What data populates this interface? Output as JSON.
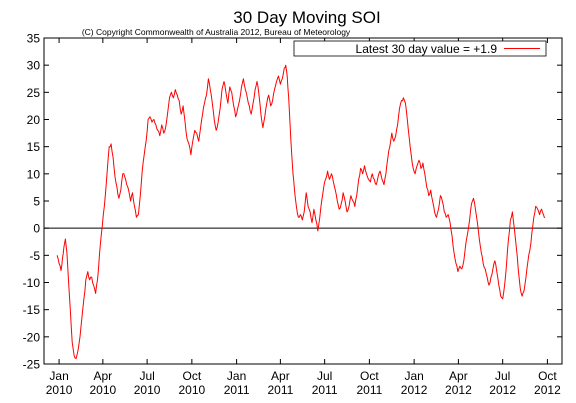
{
  "chart_data": {
    "type": "line",
    "title": "30 Day Moving SOI",
    "subtitle": "(C) Copyright Commonwealth of Australia 2012, Bureau of Meteorology",
    "xlabel": "",
    "ylabel": "",
    "ylim": [
      -25,
      35
    ],
    "yticks": [
      -25,
      -20,
      -15,
      -10,
      -5,
      0,
      5,
      10,
      15,
      20,
      25,
      30,
      35
    ],
    "xlim": [
      "2009-12-01",
      "2012-10-31"
    ],
    "xticks": [
      {
        "date": "2010-01-01",
        "line1": "Jan",
        "line2": "2010"
      },
      {
        "date": "2010-04-01",
        "line1": "Apr",
        "line2": "2010"
      },
      {
        "date": "2010-07-01",
        "line1": "Jul",
        "line2": "2010"
      },
      {
        "date": "2010-10-01",
        "line1": "Oct",
        "line2": "2010"
      },
      {
        "date": "2011-01-01",
        "line1": "Jan",
        "line2": "2011"
      },
      {
        "date": "2011-04-01",
        "line1": "Apr",
        "line2": "2011"
      },
      {
        "date": "2011-07-01",
        "line1": "Jul",
        "line2": "2011"
      },
      {
        "date": "2011-10-01",
        "line1": "Oct",
        "line2": "2011"
      },
      {
        "date": "2012-01-01",
        "line1": "Jan",
        "line2": "2012"
      },
      {
        "date": "2012-04-01",
        "line1": "Apr",
        "line2": "2012"
      },
      {
        "date": "2012-07-01",
        "line1": "Jul",
        "line2": "2012"
      },
      {
        "date": "2012-10-01",
        "line1": "Oct",
        "line2": "2012"
      }
    ],
    "grid": false,
    "legend_position": "top-right",
    "series": [
      {
        "name": "Latest 30 day value = +1.9",
        "color": "#ff0000",
        "points": [
          [
            "2009-12-28",
            -5.0
          ],
          [
            "2010-01-01",
            -6.5
          ],
          [
            "2010-01-05",
            -7.8
          ],
          [
            "2010-01-08",
            -5.5
          ],
          [
            "2010-01-11",
            -3.5
          ],
          [
            "2010-01-14",
            -2.0
          ],
          [
            "2010-01-17",
            -4.5
          ],
          [
            "2010-01-20",
            -9.0
          ],
          [
            "2010-01-24",
            -15.0
          ],
          [
            "2010-01-28",
            -21.0
          ],
          [
            "2010-02-01",
            -23.5
          ],
          [
            "2010-02-05",
            -24.0
          ],
          [
            "2010-02-09",
            -22.5
          ],
          [
            "2010-02-13",
            -20.0
          ],
          [
            "2010-02-17",
            -16.5
          ],
          [
            "2010-02-21",
            -13.0
          ],
          [
            "2010-02-25",
            -9.5
          ],
          [
            "2010-03-01",
            -8.0
          ],
          [
            "2010-03-05",
            -9.5
          ],
          [
            "2010-03-09",
            -9.0
          ],
          [
            "2010-03-13",
            -10.5
          ],
          [
            "2010-03-17",
            -12.0
          ],
          [
            "2010-03-21",
            -9.5
          ],
          [
            "2010-03-25",
            -5.0
          ],
          [
            "2010-03-29",
            -1.0
          ],
          [
            "2010-04-02",
            2.5
          ],
          [
            "2010-04-06",
            6.0
          ],
          [
            "2010-04-10",
            10.5
          ],
          [
            "2010-04-14",
            15.0
          ],
          [
            "2010-04-18",
            15.5
          ],
          [
            "2010-04-22",
            13.0
          ],
          [
            "2010-04-26",
            9.5
          ],
          [
            "2010-04-30",
            7.5
          ],
          [
            "2010-05-04",
            5.5
          ],
          [
            "2010-05-08",
            7.0
          ],
          [
            "2010-05-12",
            10.0
          ],
          [
            "2010-05-16",
            9.5
          ],
          [
            "2010-05-20",
            8.0
          ],
          [
            "2010-05-24",
            7.0
          ],
          [
            "2010-05-28",
            5.0
          ],
          [
            "2010-06-01",
            6.5
          ],
          [
            "2010-06-05",
            4.0
          ],
          [
            "2010-06-09",
            2.0
          ],
          [
            "2010-06-13",
            2.5
          ],
          [
            "2010-06-17",
            6.0
          ],
          [
            "2010-06-21",
            10.5
          ],
          [
            "2010-06-25",
            13.5
          ],
          [
            "2010-06-29",
            16.0
          ],
          [
            "2010-07-03",
            20.0
          ],
          [
            "2010-07-07",
            20.5
          ],
          [
            "2010-07-11",
            19.5
          ],
          [
            "2010-07-15",
            20.0
          ],
          [
            "2010-07-19",
            19.0
          ],
          [
            "2010-07-23",
            18.0
          ],
          [
            "2010-07-27",
            17.0
          ],
          [
            "2010-07-31",
            19.0
          ],
          [
            "2010-08-04",
            17.5
          ],
          [
            "2010-08-08",
            18.5
          ],
          [
            "2010-08-12",
            21.0
          ],
          [
            "2010-08-16",
            24.0
          ],
          [
            "2010-08-20",
            25.0
          ],
          [
            "2010-08-24",
            24.0
          ],
          [
            "2010-08-28",
            25.5
          ],
          [
            "2010-09-01",
            24.5
          ],
          [
            "2010-09-05",
            23.5
          ],
          [
            "2010-09-09",
            21.0
          ],
          [
            "2010-09-13",
            22.5
          ],
          [
            "2010-09-17",
            19.5
          ],
          [
            "2010-09-21",
            16.5
          ],
          [
            "2010-09-25",
            15.5
          ],
          [
            "2010-09-29",
            13.5
          ],
          [
            "2010-10-03",
            16.0
          ],
          [
            "2010-10-07",
            18.0
          ],
          [
            "2010-10-11",
            17.5
          ],
          [
            "2010-10-15",
            16.0
          ],
          [
            "2010-10-19",
            18.5
          ],
          [
            "2010-10-23",
            21.0
          ],
          [
            "2010-10-27",
            23.0
          ],
          [
            "2010-10-31",
            24.5
          ],
          [
            "2010-11-04",
            27.5
          ],
          [
            "2010-11-08",
            25.5
          ],
          [
            "2010-11-12",
            23.0
          ],
          [
            "2010-11-16",
            20.0
          ],
          [
            "2010-11-20",
            18.0
          ],
          [
            "2010-11-24",
            19.5
          ],
          [
            "2010-11-28",
            22.0
          ],
          [
            "2010-12-02",
            25.5
          ],
          [
            "2010-12-06",
            27.0
          ],
          [
            "2010-12-10",
            25.0
          ],
          [
            "2010-12-14",
            23.0
          ],
          [
            "2010-12-18",
            26.0
          ],
          [
            "2010-12-22",
            25.0
          ],
          [
            "2010-12-26",
            22.5
          ],
          [
            "2010-12-30",
            20.5
          ],
          [
            "2011-01-03",
            22.0
          ],
          [
            "2011-01-07",
            23.5
          ],
          [
            "2011-01-11",
            26.0
          ],
          [
            "2011-01-15",
            27.5
          ],
          [
            "2011-01-19",
            25.5
          ],
          [
            "2011-01-23",
            24.0
          ],
          [
            "2011-01-27",
            22.5
          ],
          [
            "2011-01-31",
            21.0
          ],
          [
            "2011-02-04",
            23.0
          ],
          [
            "2011-02-08",
            25.5
          ],
          [
            "2011-02-12",
            27.0
          ],
          [
            "2011-02-16",
            24.5
          ],
          [
            "2011-02-20",
            21.0
          ],
          [
            "2011-02-24",
            18.5
          ],
          [
            "2011-02-28",
            20.5
          ],
          [
            "2011-03-04",
            23.0
          ],
          [
            "2011-03-08",
            24.5
          ],
          [
            "2011-03-12",
            22.5
          ],
          [
            "2011-03-16",
            23.5
          ],
          [
            "2011-03-20",
            25.5
          ],
          [
            "2011-03-24",
            27.0
          ],
          [
            "2011-03-28",
            28.0
          ],
          [
            "2011-04-01",
            26.5
          ],
          [
            "2011-04-05",
            27.5
          ],
          [
            "2011-04-09",
            29.5
          ],
          [
            "2011-04-12",
            30.0
          ],
          [
            "2011-04-15",
            28.0
          ],
          [
            "2011-04-18",
            24.0
          ],
          [
            "2011-04-21",
            19.0
          ],
          [
            "2011-04-24",
            14.0
          ],
          [
            "2011-04-27",
            10.0
          ],
          [
            "2011-04-30",
            7.0
          ],
          [
            "2011-05-04",
            4.0
          ],
          [
            "2011-05-08",
            2.0
          ],
          [
            "2011-05-12",
            2.5
          ],
          [
            "2011-05-16",
            1.5
          ],
          [
            "2011-05-20",
            3.0
          ],
          [
            "2011-05-24",
            6.5
          ],
          [
            "2011-05-28",
            4.0
          ],
          [
            "2011-06-01",
            3.0
          ],
          [
            "2011-06-05",
            1.0
          ],
          [
            "2011-06-09",
            3.5
          ],
          [
            "2011-06-13",
            1.5
          ],
          [
            "2011-06-17",
            -0.5
          ],
          [
            "2011-06-21",
            2.0
          ],
          [
            "2011-06-25",
            5.0
          ],
          [
            "2011-06-29",
            7.5
          ],
          [
            "2011-07-03",
            9.0
          ],
          [
            "2011-07-07",
            10.5
          ],
          [
            "2011-07-11",
            9.0
          ],
          [
            "2011-07-15",
            10.0
          ],
          [
            "2011-07-19",
            8.5
          ],
          [
            "2011-07-23",
            7.0
          ],
          [
            "2011-07-27",
            5.0
          ],
          [
            "2011-07-31",
            3.5
          ],
          [
            "2011-08-04",
            4.5
          ],
          [
            "2011-08-08",
            6.5
          ],
          [
            "2011-08-12",
            5.0
          ],
          [
            "2011-08-16",
            3.0
          ],
          [
            "2011-08-20",
            4.0
          ],
          [
            "2011-08-24",
            6.0
          ],
          [
            "2011-08-28",
            5.0
          ],
          [
            "2011-09-01",
            4.0
          ],
          [
            "2011-09-05",
            6.0
          ],
          [
            "2011-09-09",
            9.0
          ],
          [
            "2011-09-13",
            11.0
          ],
          [
            "2011-09-17",
            10.0
          ],
          [
            "2011-09-21",
            11.5
          ],
          [
            "2011-09-25",
            10.0
          ],
          [
            "2011-09-29",
            9.0
          ],
          [
            "2011-10-03",
            8.5
          ],
          [
            "2011-10-07",
            10.0
          ],
          [
            "2011-10-11",
            9.0
          ],
          [
            "2011-10-15",
            8.0
          ],
          [
            "2011-10-19",
            9.5
          ],
          [
            "2011-10-23",
            10.5
          ],
          [
            "2011-10-27",
            9.0
          ],
          [
            "2011-10-31",
            8.0
          ],
          [
            "2011-11-04",
            10.0
          ],
          [
            "2011-11-08",
            13.0
          ],
          [
            "2011-11-12",
            15.0
          ],
          [
            "2011-11-16",
            17.5
          ],
          [
            "2011-11-20",
            16.0
          ],
          [
            "2011-11-24",
            17.0
          ],
          [
            "2011-11-28",
            19.0
          ],
          [
            "2011-12-02",
            22.0
          ],
          [
            "2011-12-06",
            23.5
          ],
          [
            "2011-12-10",
            24.0
          ],
          [
            "2011-12-14",
            23.0
          ],
          [
            "2011-12-18",
            20.0
          ],
          [
            "2011-12-22",
            16.5
          ],
          [
            "2011-12-26",
            13.5
          ],
          [
            "2011-12-30",
            11.0
          ],
          [
            "2012-01-03",
            10.0
          ],
          [
            "2012-01-07",
            11.5
          ],
          [
            "2012-01-11",
            12.5
          ],
          [
            "2012-01-15",
            11.0
          ],
          [
            "2012-01-19",
            12.0
          ],
          [
            "2012-01-23",
            10.0
          ],
          [
            "2012-01-27",
            7.5
          ],
          [
            "2012-01-31",
            6.0
          ],
          [
            "2012-02-04",
            7.0
          ],
          [
            "2012-02-08",
            5.0
          ],
          [
            "2012-02-12",
            3.0
          ],
          [
            "2012-02-16",
            2.0
          ],
          [
            "2012-02-20",
            3.5
          ],
          [
            "2012-02-24",
            6.0
          ],
          [
            "2012-02-28",
            5.0
          ],
          [
            "2012-03-03",
            3.0
          ],
          [
            "2012-03-07",
            2.0
          ],
          [
            "2012-03-11",
            2.5
          ],
          [
            "2012-03-15",
            1.0
          ],
          [
            "2012-03-19",
            -1.5
          ],
          [
            "2012-03-23",
            -4.5
          ],
          [
            "2012-03-27",
            -6.5
          ],
          [
            "2012-03-31",
            -8.0
          ],
          [
            "2012-04-04",
            -7.0
          ],
          [
            "2012-04-08",
            -7.5
          ],
          [
            "2012-04-12",
            -6.0
          ],
          [
            "2012-04-16",
            -3.0
          ],
          [
            "2012-04-20",
            -1.0
          ],
          [
            "2012-04-24",
            1.5
          ],
          [
            "2012-04-28",
            4.5
          ],
          [
            "2012-05-02",
            5.5
          ],
          [
            "2012-05-06",
            3.5
          ],
          [
            "2012-05-10",
            1.0
          ],
          [
            "2012-05-14",
            -2.0
          ],
          [
            "2012-05-18",
            -4.5
          ],
          [
            "2012-05-22",
            -6.5
          ],
          [
            "2012-05-26",
            -7.5
          ],
          [
            "2012-05-30",
            -9.0
          ],
          [
            "2012-06-03",
            -10.5
          ],
          [
            "2012-06-07",
            -9.0
          ],
          [
            "2012-06-11",
            -7.5
          ],
          [
            "2012-06-15",
            -6.0
          ],
          [
            "2012-06-19",
            -8.0
          ],
          [
            "2012-06-23",
            -10.5
          ],
          [
            "2012-06-27",
            -12.5
          ],
          [
            "2012-07-01",
            -13.0
          ],
          [
            "2012-07-05",
            -10.5
          ],
          [
            "2012-07-09",
            -6.5
          ],
          [
            "2012-07-13",
            -2.0
          ],
          [
            "2012-07-17",
            1.5
          ],
          [
            "2012-07-21",
            3.0
          ],
          [
            "2012-07-25",
            0.0
          ],
          [
            "2012-07-29",
            -3.5
          ],
          [
            "2012-08-02",
            -7.5
          ],
          [
            "2012-08-06",
            -11.0
          ],
          [
            "2012-08-10",
            -12.5
          ],
          [
            "2012-08-14",
            -11.5
          ],
          [
            "2012-08-18",
            -9.0
          ],
          [
            "2012-08-22",
            -6.0
          ],
          [
            "2012-08-26",
            -4.0
          ],
          [
            "2012-08-30",
            -1.0
          ],
          [
            "2012-09-03",
            2.0
          ],
          [
            "2012-09-07",
            4.0
          ],
          [
            "2012-09-11",
            3.5
          ],
          [
            "2012-09-15",
            2.5
          ],
          [
            "2012-09-19",
            3.5
          ],
          [
            "2012-09-23",
            2.5
          ],
          [
            "2012-09-26",
            1.9
          ]
        ]
      }
    ]
  }
}
